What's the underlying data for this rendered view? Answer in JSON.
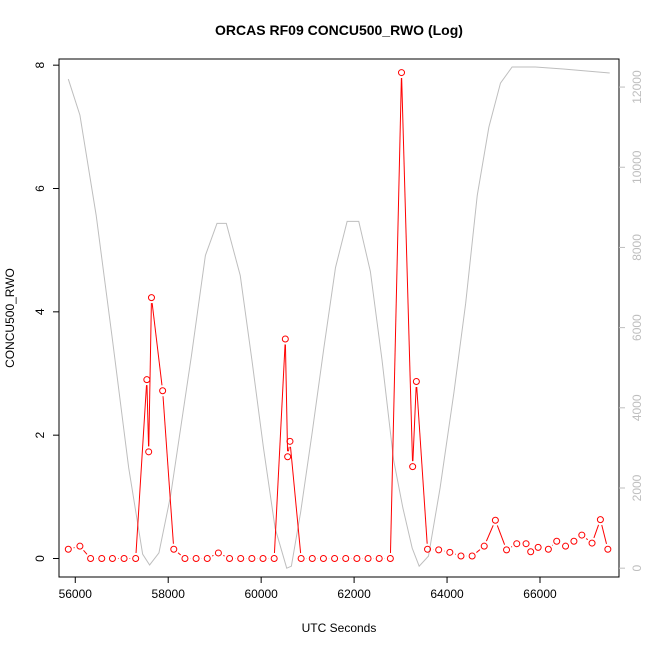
{
  "chart_data": {
    "type": "line",
    "title": "ORCAS RF09 CONCU500_RWO (Log)",
    "xlabel": "UTC Seconds",
    "ylabel": "CONCU500_RWO",
    "xlim": [
      55650,
      67700
    ],
    "ylim": [
      -0.3,
      8.1
    ],
    "y2lim": [
      -220,
      12700
    ],
    "x_ticks": [
      56000,
      58000,
      60000,
      62000,
      64000,
      66000
    ],
    "y_ticks": [
      0,
      2,
      4,
      6,
      8
    ],
    "y2_ticks": [
      0,
      2000,
      4000,
      6000,
      8000,
      10000,
      12000
    ],
    "grid": false,
    "series": [
      {
        "color": "#ff0000",
        "marker": "open-circle",
        "axis": "left",
        "x": [
          55850,
          56100,
          56330,
          56570,
          56800,
          57050,
          57300,
          57540,
          57580,
          57640,
          57880,
          58120,
          58360,
          58600,
          58840,
          59080,
          59320,
          59560,
          59800,
          60040,
          60280,
          60520,
          60570,
          60620,
          60860,
          61100,
          61340,
          61580,
          61820,
          62060,
          62300,
          62540,
          62780,
          63020,
          63260,
          63340,
          63580,
          63820,
          64060,
          64300,
          64540,
          64800,
          65040,
          65280,
          65500,
          65700,
          65800,
          65960,
          66180,
          66360,
          66550,
          66730,
          66900,
          67120,
          67300,
          67460
        ],
        "values": [
          0.15,
          0.2,
          0.0,
          0.0,
          0.0,
          0.0,
          0.0,
          2.9,
          1.73,
          4.23,
          2.72,
          0.15,
          0.0,
          0.0,
          0.0,
          0.09,
          0.0,
          0.0,
          0.0,
          0.0,
          0.0,
          3.56,
          1.65,
          1.9,
          0.0,
          0.0,
          0.0,
          0.0,
          0.0,
          0.0,
          0.0,
          0.0,
          0.0,
          7.88,
          1.49,
          2.87,
          0.15,
          0.14,
          0.1,
          0.04,
          0.04,
          0.2,
          0.62,
          0.14,
          0.24,
          0.24,
          0.11,
          0.18,
          0.15,
          0.28,
          0.2,
          0.28,
          0.38,
          0.25,
          0.63,
          0.15
        ]
      },
      {
        "color": "#bebebe",
        "marker": "none",
        "axis": "right",
        "x": [
          55850,
          56100,
          56450,
          56800,
          57150,
          57450,
          57600,
          57800,
          58050,
          58500,
          58800,
          59050,
          59250,
          59550,
          59800,
          60050,
          60300,
          60550,
          60650,
          60850,
          61100,
          61350,
          61600,
          61850,
          62100,
          62350,
          62600,
          62850,
          63050,
          63250,
          63400,
          63600,
          63850,
          64150,
          64400,
          64650,
          64900,
          65150,
          65400,
          65900,
          66500,
          67000,
          67500
        ],
        "values": [
          12200,
          11300,
          8800,
          5700,
          2500,
          350,
          80,
          380,
          1800,
          5300,
          7800,
          8600,
          8600,
          7300,
          5200,
          3000,
          1000,
          0,
          50,
          1400,
          3400,
          5500,
          7500,
          8650,
          8650,
          7400,
          5200,
          2700,
          1500,
          500,
          50,
          300,
          2000,
          4400,
          6600,
          9300,
          11000,
          12100,
          12500,
          12500,
          12450,
          12400,
          12350
        ]
      }
    ]
  }
}
